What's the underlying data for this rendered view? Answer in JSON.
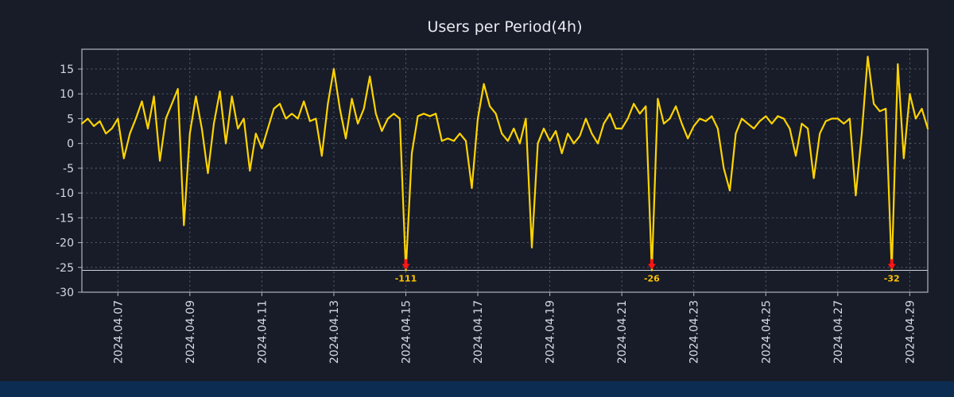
{
  "title": "Users per Period(4h)",
  "colors": {
    "background": "#171c28",
    "line": "#ffd400",
    "grid": "#aab2c4",
    "text": "#d4d8e2",
    "axis_border": "#aeb4c2",
    "clip_line": "#ccd1dd",
    "annotation_text": "#ffc400",
    "marker": "#ff1515",
    "footer": "#0d2c52"
  },
  "chart_data": {
    "type": "line",
    "title": "Users per Period(4h)",
    "series_name": "Users per Period",
    "interval_hours": 4,
    "x_start": "2024-04-06 00:00",
    "values": [
      4,
      5,
      3.5,
      4.5,
      2,
      3,
      5,
      -3,
      2,
      5,
      8.5,
      3,
      9.5,
      -3.5,
      5,
      8,
      11,
      -16.5,
      2,
      9.5,
      3,
      -6,
      4,
      10.5,
      0,
      9.5,
      3,
      5,
      -5.5,
      2,
      -1,
      3,
      7,
      8,
      5,
      6,
      5,
      8.5,
      4.5,
      5,
      -2.5,
      8,
      15,
      7,
      1,
      9,
      4,
      7,
      13.5,
      6,
      2.5,
      5,
      6,
      5,
      -111,
      -2,
      5.5,
      6,
      5.5,
      6,
      0.5,
      1,
      0.5,
      2,
      0.5,
      -9,
      5,
      12,
      7.5,
      6,
      2,
      0.5,
      3,
      0,
      5,
      -21,
      0,
      3,
      0.5,
      2.5,
      -2,
      2,
      0,
      1.5,
      5,
      2,
      0,
      4,
      6,
      3,
      3,
      5,
      8,
      6,
      7.5,
      -26,
      9,
      4,
      5,
      7.5,
      4,
      1,
      3.5,
      5,
      4.5,
      5.5,
      3,
      -5,
      -9.5,
      2,
      5,
      4,
      3,
      4.5,
      5.5,
      4,
      5.5,
      5,
      3,
      -2.5,
      4,
      3,
      -7,
      2,
      4.5,
      5,
      5,
      4,
      5,
      -10.5,
      2,
      17.5,
      8,
      6.5,
      7,
      -32,
      16,
      -3,
      10,
      5,
      7,
      3
    ],
    "x_tick_labels": [
      "2024.04.07",
      "2024.04.09",
      "2024.04.11",
      "2024.04.13",
      "2024.04.15",
      "2024.04.17",
      "2024.04.19",
      "2024.04.21",
      "2024.04.23",
      "2024.04.25",
      "2024.04.27",
      "2024.04.29"
    ],
    "x_tick_indices": [
      6,
      18,
      30,
      42,
      54,
      66,
      78,
      90,
      102,
      114,
      126,
      138
    ],
    "y_ticks": [
      15,
      10,
      5,
      0,
      -5,
      -10,
      -15,
      -20,
      -25,
      -30
    ],
    "y_tick_labels": [
      "15",
      "10",
      "5",
      "0",
      "-5",
      "-10",
      "-15",
      "-20",
      "-25",
      "-30"
    ],
    "ylim": [
      -30,
      19
    ],
    "clip_value": -25.6,
    "annotations": [
      {
        "index": 54,
        "label": "-111",
        "value": -111
      },
      {
        "index": 95,
        "label": "-26",
        "value": -26
      },
      {
        "index": 135,
        "label": "-32",
        "value": -32
      }
    ],
    "grid": "dashed",
    "legend_position": "none"
  }
}
